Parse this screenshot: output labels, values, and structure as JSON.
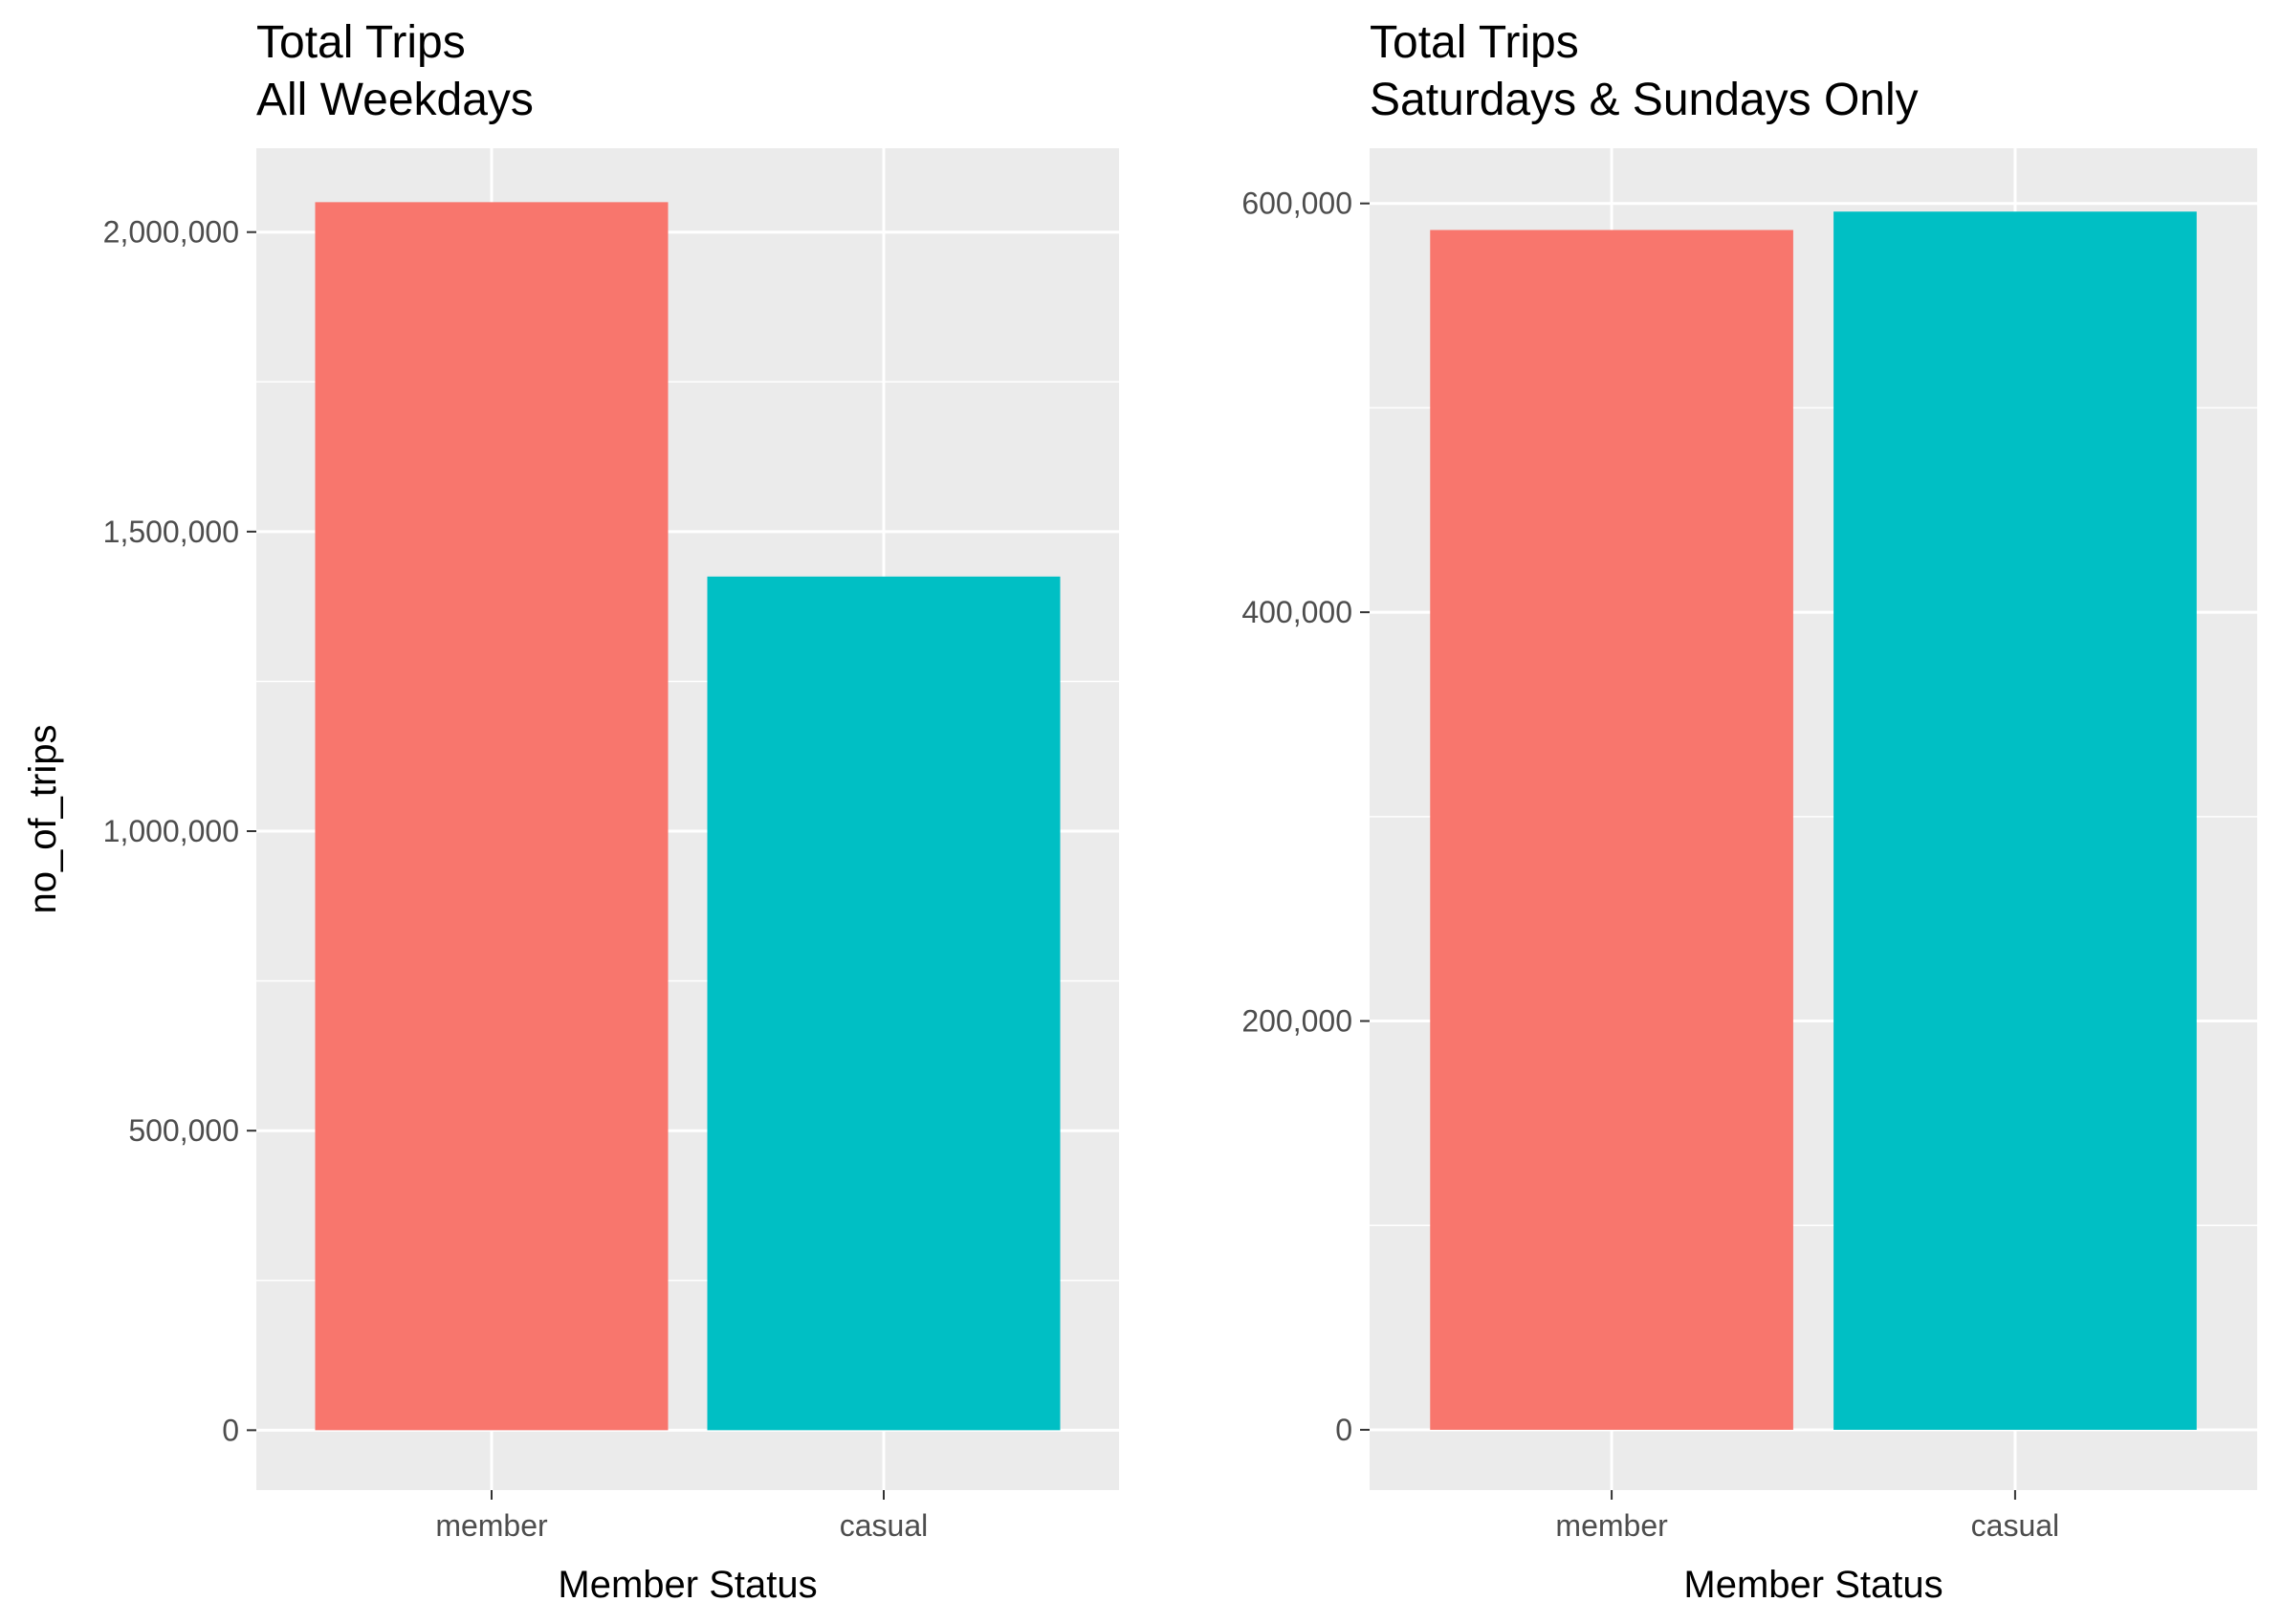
{
  "chart_data": [
    {
      "type": "bar",
      "title": "Total Trips",
      "subtitle": "All Weekdays",
      "xlabel": "Member Status",
      "ylabel": "no_of_trips",
      "categories": [
        "member",
        "casual"
      ],
      "values": [
        2050000,
        1425000
      ],
      "colors": [
        "#F8766D",
        "#00BFC4"
      ],
      "ylim": [
        -100000,
        2140000
      ],
      "yticks": [
        0,
        500000,
        1000000,
        1500000,
        2000000
      ],
      "ytick_labels": [
        "0",
        "500,000",
        "1,000,000",
        "1,500,000",
        "2,000,000"
      ],
      "grid": true,
      "legend": "none"
    },
    {
      "type": "bar",
      "title": "Total Trips",
      "subtitle": "Saturdays & Sundays Only",
      "xlabel": "Member Status",
      "ylabel": "",
      "categories": [
        "member",
        "casual"
      ],
      "values": [
        587000,
        596000
      ],
      "colors": [
        "#F8766D",
        "#00BFC4"
      ],
      "ylim": [
        -29500,
        627000
      ],
      "yticks": [
        0,
        200000,
        400000,
        600000
      ],
      "ytick_labels": [
        "0",
        "200,000",
        "400,000",
        "600,000"
      ],
      "grid": true,
      "legend": "none"
    }
  ],
  "style": {
    "panel_background": "#EBEBEB",
    "grid_color": "#FFFFFF",
    "tick_text_color": "#4D4D4D",
    "title_color": "#000000"
  }
}
